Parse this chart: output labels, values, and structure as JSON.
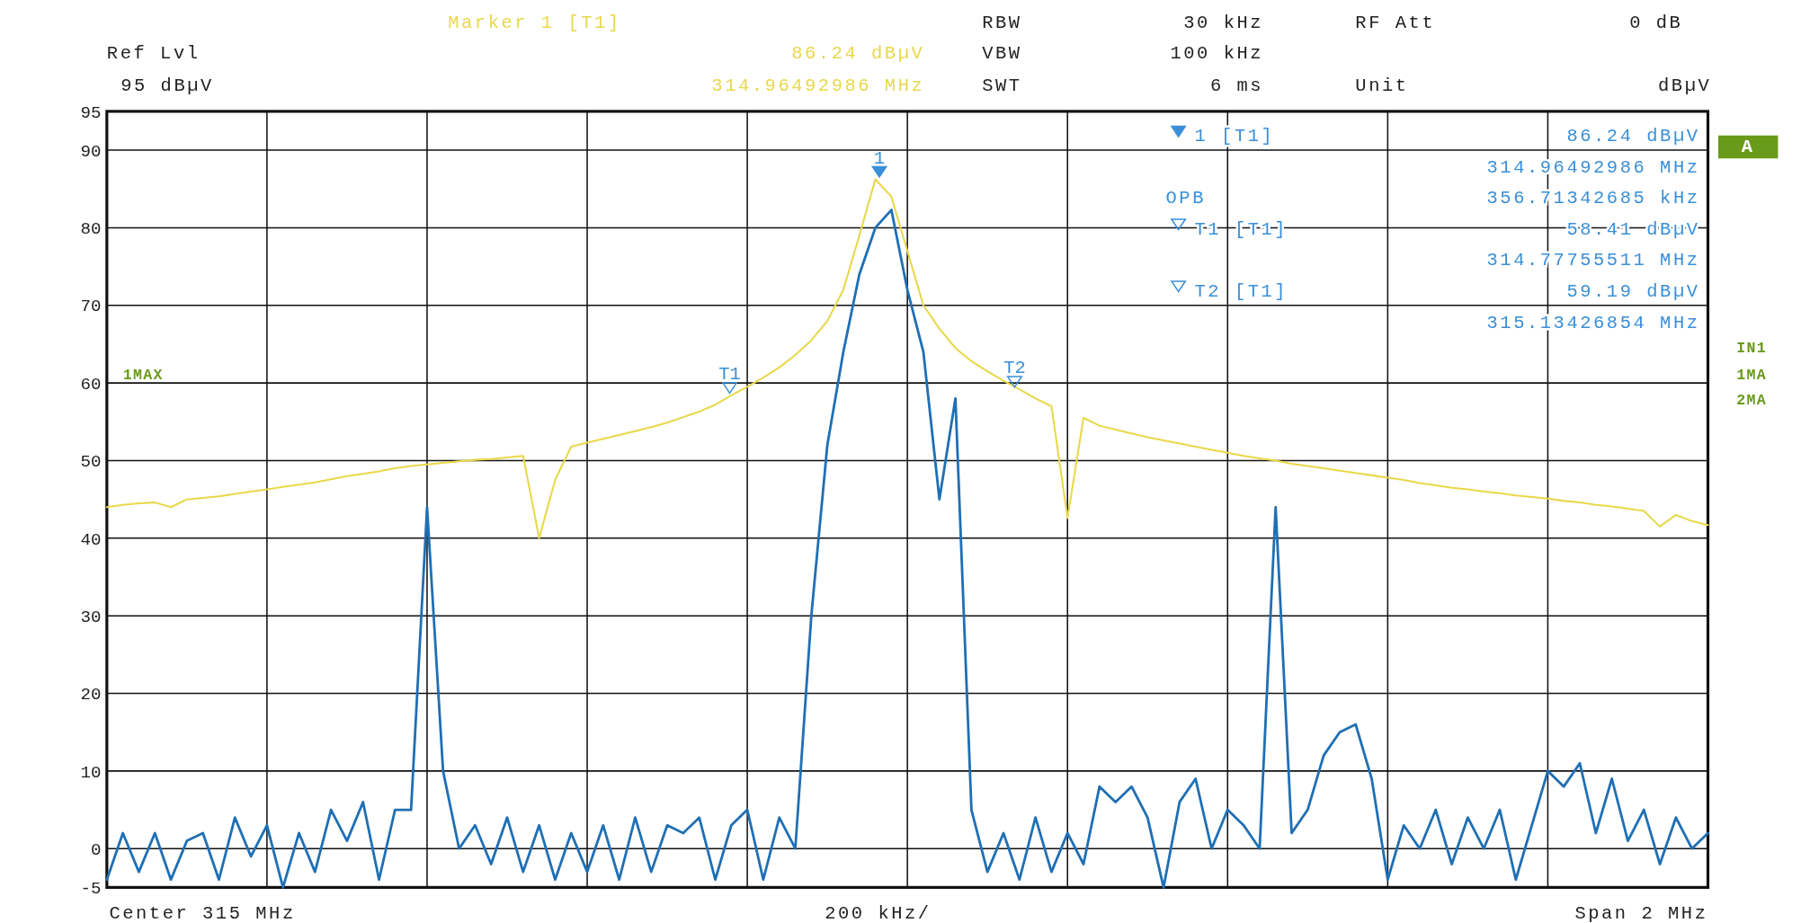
{
  "chart_data": {
    "type": "line",
    "categories": [
      null,
      null,
      null,
      null,
      null,
      null,
      null,
      null,
      null,
      null,
      null,
      null,
      null,
      null,
      null,
      null,
      null,
      null,
      null,
      null,
      null,
      null,
      null,
      null,
      null,
      null,
      null,
      null,
      null,
      null,
      null,
      null,
      null,
      null,
      null,
      null,
      null,
      null,
      null,
      null,
      null,
      null,
      null,
      null,
      null,
      null,
      null,
      null,
      null,
      null,
      null,
      null,
      null,
      null,
      null,
      null,
      null,
      null,
      null,
      null,
      null,
      null,
      null,
      null,
      null,
      null,
      null,
      null,
      null,
      null,
      null,
      null,
      null,
      null,
      null,
      null,
      null,
      null,
      null,
      null,
      null,
      null,
      null,
      null,
      null,
      null,
      null,
      null,
      null,
      null,
      null,
      null,
      null,
      null,
      null,
      null,
      null,
      null,
      null,
      null,
      null
    ],
    "ylim": [
      -5,
      95
    ],
    "yticks": [
      -5,
      0,
      10,
      20,
      30,
      40,
      50,
      60,
      70,
      80,
      90,
      95
    ],
    "tick_labels": "y",
    "grid": true,
    "series": [
      {
        "color": "#e8d84a",
        "values": [
          44,
          44.3,
          44.5,
          44.6,
          44,
          45,
          45.2,
          45.4,
          45.7,
          46,
          46.3,
          46.6,
          46.9,
          47.2,
          47.6,
          48,
          48.3,
          48.6,
          49,
          49.3,
          49.5,
          49.7,
          49.9,
          50.1,
          50.2,
          50.4,
          50.6,
          40,
          47.5,
          51.8,
          52.3,
          52.8,
          53.3,
          53.8,
          54.3,
          54.9,
          55.6,
          56.3,
          57.2,
          58.41,
          59.5,
          60.7,
          62,
          63.6,
          65.5,
          68,
          72,
          79,
          86.24,
          84,
          77,
          70,
          67,
          64.5,
          62.8,
          61.5,
          60.3,
          59.19,
          58,
          57,
          42.6,
          55.5,
          54.5,
          54,
          53.5,
          53,
          52.6,
          52.2,
          51.8,
          51.4,
          51,
          50.6,
          50.3,
          50,
          49.6,
          49.3,
          49,
          48.7,
          48.4,
          48.1,
          47.8,
          47.5,
          47.1,
          46.8,
          46.5,
          46.3,
          46,
          45.8,
          45.5,
          45.3,
          45.1,
          44.8,
          44.6,
          44.3,
          44.1,
          43.8,
          43.5,
          41.5,
          43,
          42.2,
          41.7
        ]
      },
      {
        "color": "#1f6fb4",
        "values": [
          -4,
          2,
          -3,
          2,
          -4,
          1,
          2,
          -4,
          4,
          -1,
          3,
          -5,
          2,
          -3,
          5,
          1,
          6,
          -4,
          5,
          5,
          44,
          10,
          0,
          3,
          -2,
          4,
          -3,
          3,
          -4,
          2,
          -3,
          3,
          -4,
          4,
          -3,
          3,
          2,
          4,
          -4,
          3,
          5,
          -4,
          4,
          0,
          30,
          52,
          64,
          74,
          80,
          82.3,
          72,
          64,
          45,
          58,
          5,
          -3,
          2,
          -4,
          4,
          -3,
          2,
          -2,
          8,
          6,
          8,
          4,
          -5,
          6,
          9,
          0,
          5,
          3,
          0,
          44,
          2,
          5,
          12,
          15,
          16,
          9,
          -4,
          3,
          0,
          5,
          -2,
          4,
          0,
          5,
          -4,
          3,
          10,
          8,
          11,
          2,
          9,
          1,
          5,
          -2,
          4,
          0,
          2
        ]
      }
    ],
    "annotations": [
      "Marker 1 [T1]",
      "Ref Lvl",
      "86.24 dBµV",
      "95 dBµV",
      "314.96492986 MHz",
      "RBW",
      "30 kHz",
      "RF Att",
      "0 dB",
      "VBW",
      "100 kHz",
      "SWT",
      "6 ms",
      "Unit",
      "dBµV",
      "Center 315 MHz",
      "200 kHz/",
      "Span 2 MHz",
      "1 [T1]",
      "86.24 dBµV",
      "314.96492986 MHz",
      "OPB",
      "356.71342685 kHz",
      "T1 [T1]",
      "58.41 dBµV",
      "314.77755511 MHz",
      "T2 [T1]",
      "59.19 dBµV",
      "315.13426854 MHz",
      "1MAX",
      "A",
      "IN1",
      "1MA",
      "2MA",
      {
        "text": "1",
        "y": 86.24
      },
      {
        "text": "T1",
        "y": 58.41
      },
      {
        "text": "T2",
        "y": 59.19
      }
    ]
  }
}
